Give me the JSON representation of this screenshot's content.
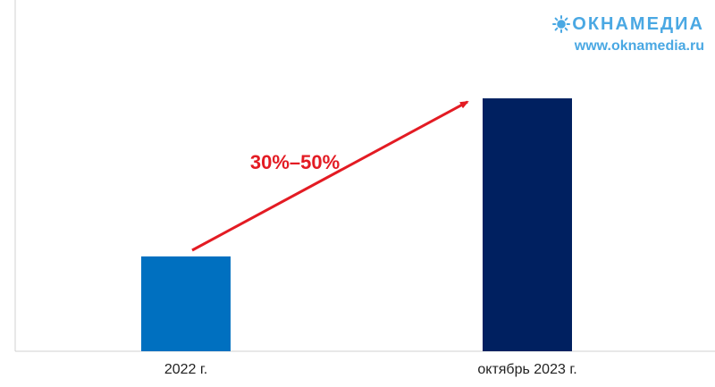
{
  "brand": {
    "logo_text": "ОКНАМЕДИА",
    "url": "www.oknamedia.ru",
    "color": "#4aa8e3",
    "icon": "sun-icon"
  },
  "chart_data": {
    "type": "bar",
    "categories": [
      "2022 г.",
      "октябрь 2023 г."
    ],
    "values": [
      27,
      72
    ],
    "bar_colors": [
      "#0070c0",
      "#002060"
    ],
    "ylim": [
      0,
      100
    ],
    "title": "",
    "xlabel": "",
    "ylabel": "",
    "grid": false,
    "annotation": {
      "text": "30%–50%",
      "color": "#e31b23",
      "arrow": true
    }
  }
}
